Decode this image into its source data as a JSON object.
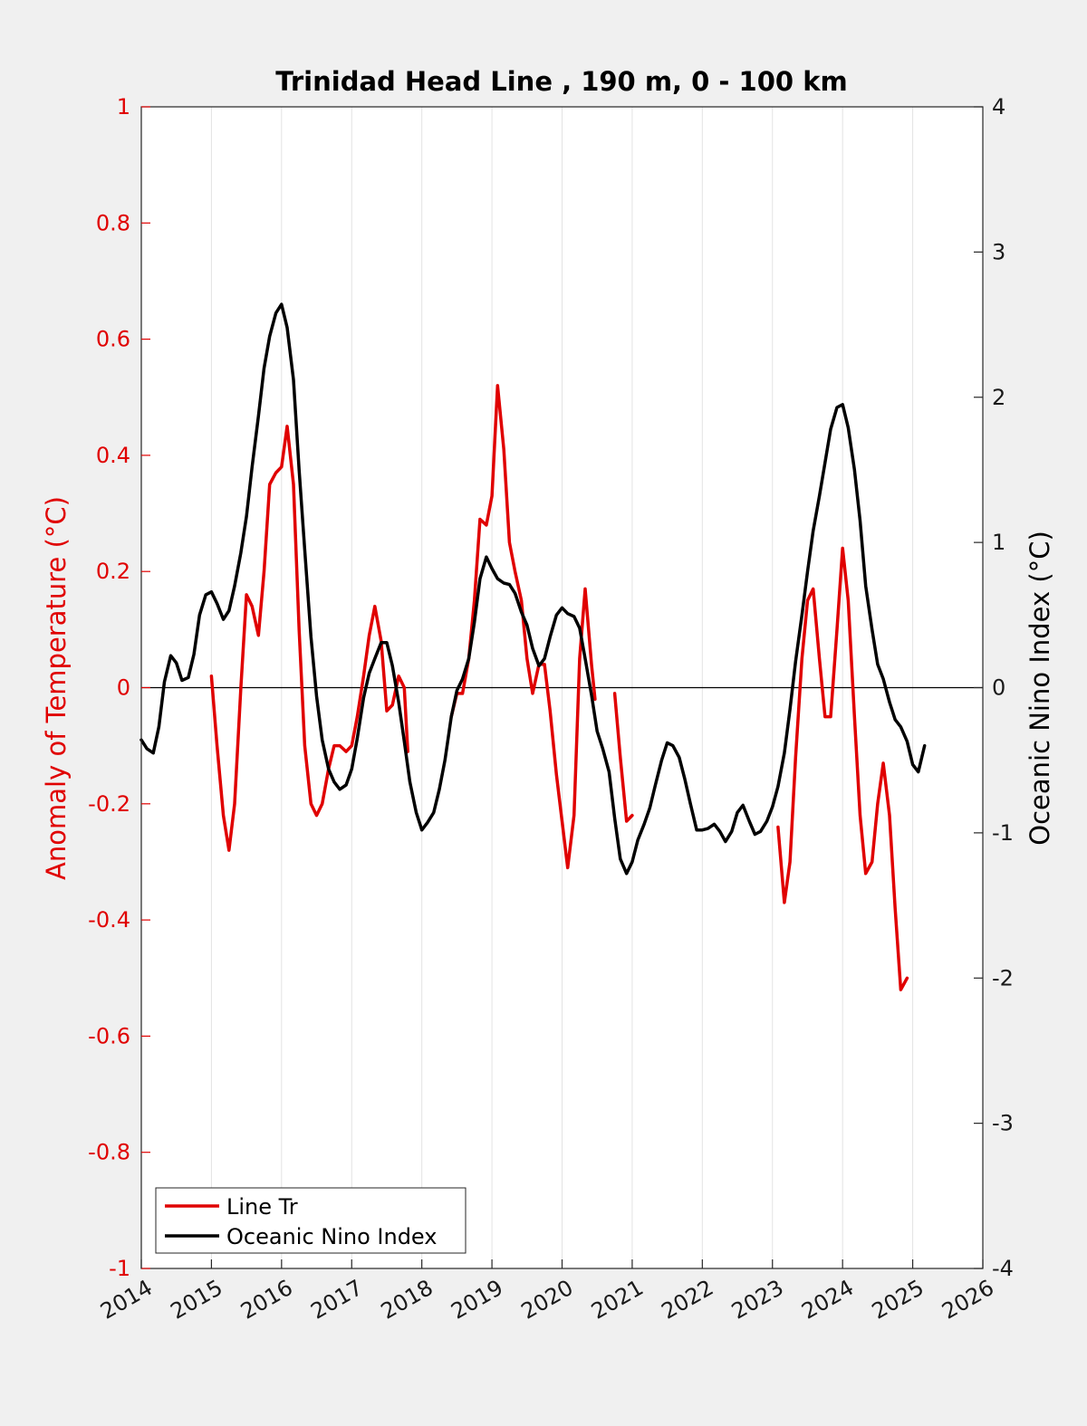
{
  "chart_data": {
    "type": "line",
    "title": "Trinidad Head Line , 190 m, 0 - 100 km",
    "xlim": [
      2014,
      2026
    ],
    "x_ticks": [
      "2014",
      "2015",
      "2016",
      "2017",
      "2018",
      "2019",
      "2020",
      "2021",
      "2022",
      "2023",
      "2024",
      "2025",
      "2026"
    ],
    "x_grid": true,
    "y_left": {
      "label": "Anomaly of Temperature (°C)",
      "range": [
        -1,
        1
      ],
      "ticks": [
        "-1",
        "-0.8",
        "-0.6",
        "-0.4",
        "-0.2",
        "0",
        "0.2",
        "0.4",
        "0.6",
        "0.8",
        "1"
      ],
      "color": "#e00000"
    },
    "y_right": {
      "label": "Oceanic Nino Index (°C)",
      "range": [
        -4,
        4
      ],
      "ticks": [
        "-4",
        "-3",
        "-2",
        "-1",
        "0",
        "1",
        "2",
        "3",
        "4"
      ],
      "color": "#000000"
    },
    "zero_line": true,
    "legend": {
      "position": "bottom-left"
    },
    "series": [
      {
        "name": "Line Tr",
        "axis": "left",
        "color": "#e00000",
        "segments": [
          [
            [
              2015.0,
              0.02
            ],
            [
              2015.08,
              -0.1
            ],
            [
              2015.17,
              -0.22
            ],
            [
              2015.25,
              -0.28
            ],
            [
              2015.33,
              -0.2
            ],
            [
              2015.42,
              0.0
            ],
            [
              2015.5,
              0.16
            ],
            [
              2015.58,
              0.14
            ],
            [
              2015.67,
              0.09
            ],
            [
              2015.75,
              0.2
            ],
            [
              2015.83,
              0.35
            ],
            [
              2015.92,
              0.37
            ],
            [
              2016.0,
              0.38
            ],
            [
              2016.08,
              0.45
            ],
            [
              2016.17,
              0.35
            ],
            [
              2016.25,
              0.1
            ],
            [
              2016.33,
              -0.1
            ],
            [
              2016.42,
              -0.2
            ],
            [
              2016.5,
              -0.22
            ],
            [
              2016.58,
              -0.2
            ],
            [
              2016.67,
              -0.14
            ],
            [
              2016.75,
              -0.1
            ],
            [
              2016.83,
              -0.1
            ],
            [
              2016.92,
              -0.11
            ],
            [
              2017.0,
              -0.1
            ],
            [
              2017.08,
              -0.05
            ],
            [
              2017.17,
              0.02
            ],
            [
              2017.25,
              0.09
            ],
            [
              2017.33,
              0.14
            ],
            [
              2017.42,
              0.08
            ],
            [
              2017.5,
              -0.04
            ],
            [
              2017.58,
              -0.03
            ],
            [
              2017.67,
              0.02
            ],
            [
              2017.75,
              0.0
            ],
            [
              2017.8,
              -0.11
            ]
          ],
          [
            [
              2018.42,
              -0.05
            ],
            [
              2018.5,
              -0.01
            ],
            [
              2018.58,
              -0.01
            ],
            [
              2018.67,
              0.05
            ],
            [
              2018.75,
              0.15
            ],
            [
              2018.83,
              0.29
            ],
            [
              2018.92,
              0.28
            ],
            [
              2019.0,
              0.33
            ],
            [
              2019.08,
              0.52
            ],
            [
              2019.17,
              0.41
            ],
            [
              2019.25,
              0.25
            ],
            [
              2019.33,
              0.2
            ],
            [
              2019.42,
              0.15
            ],
            [
              2019.5,
              0.05
            ],
            [
              2019.58,
              -0.01
            ],
            [
              2019.67,
              0.04
            ],
            [
              2019.75,
              0.04
            ],
            [
              2019.83,
              -0.04
            ],
            [
              2019.92,
              -0.15
            ],
            [
              2020.0,
              -0.23
            ],
            [
              2020.08,
              -0.31
            ],
            [
              2020.17,
              -0.22
            ],
            [
              2020.25,
              0.05
            ],
            [
              2020.33,
              0.17
            ],
            [
              2020.42,
              0.04
            ],
            [
              2020.47,
              -0.02
            ]
          ],
          [
            [
              2020.75,
              -0.01
            ],
            [
              2020.83,
              -0.12
            ],
            [
              2020.92,
              -0.23
            ],
            [
              2021.0,
              -0.22
            ]
          ],
          [
            [
              2023.08,
              -0.24
            ],
            [
              2023.17,
              -0.37
            ],
            [
              2023.25,
              -0.3
            ],
            [
              2023.33,
              -0.12
            ],
            [
              2023.42,
              0.05
            ],
            [
              2023.5,
              0.15
            ],
            [
              2023.58,
              0.17
            ],
            [
              2023.67,
              0.05
            ],
            [
              2023.75,
              -0.05
            ],
            [
              2023.83,
              -0.05
            ],
            [
              2023.92,
              0.1
            ],
            [
              2024.0,
              0.24
            ],
            [
              2024.08,
              0.15
            ],
            [
              2024.17,
              -0.05
            ],
            [
              2024.25,
              -0.22
            ],
            [
              2024.33,
              -0.32
            ],
            [
              2024.42,
              -0.3
            ],
            [
              2024.5,
              -0.2
            ],
            [
              2024.58,
              -0.13
            ],
            [
              2024.67,
              -0.22
            ],
            [
              2024.75,
              -0.38
            ],
            [
              2024.83,
              -0.52
            ],
            [
              2024.92,
              -0.5
            ]
          ]
        ]
      },
      {
        "name": "Oceanic Nino Index",
        "axis": "right",
        "color": "#000000",
        "segments": [
          [
            [
              2014.0,
              -0.36
            ],
            [
              2014.08,
              -0.42
            ],
            [
              2014.17,
              -0.45
            ],
            [
              2014.25,
              -0.27
            ],
            [
              2014.33,
              0.04
            ],
            [
              2014.42,
              0.22
            ],
            [
              2014.5,
              0.17
            ],
            [
              2014.58,
              0.05
            ],
            [
              2014.67,
              0.07
            ],
            [
              2014.75,
              0.23
            ],
            [
              2014.83,
              0.5
            ],
            [
              2014.92,
              0.64
            ],
            [
              2015.0,
              0.66
            ],
            [
              2015.08,
              0.58
            ],
            [
              2015.17,
              0.47
            ],
            [
              2015.25,
              0.53
            ],
            [
              2015.33,
              0.7
            ],
            [
              2015.42,
              0.93
            ],
            [
              2015.5,
              1.18
            ],
            [
              2015.58,
              1.52
            ],
            [
              2015.67,
              1.87
            ],
            [
              2015.75,
              2.2
            ],
            [
              2015.83,
              2.42
            ],
            [
              2015.92,
              2.58
            ],
            [
              2016.0,
              2.64
            ],
            [
              2016.08,
              2.48
            ],
            [
              2016.17,
              2.12
            ],
            [
              2016.25,
              1.5
            ],
            [
              2016.33,
              0.95
            ],
            [
              2016.42,
              0.35
            ],
            [
              2016.5,
              -0.06
            ],
            [
              2016.58,
              -0.36
            ],
            [
              2016.67,
              -0.56
            ],
            [
              2016.75,
              -0.65
            ],
            [
              2016.83,
              -0.7
            ],
            [
              2016.92,
              -0.67
            ],
            [
              2017.0,
              -0.56
            ],
            [
              2017.08,
              -0.35
            ],
            [
              2017.17,
              -0.07
            ],
            [
              2017.25,
              0.1
            ],
            [
              2017.33,
              0.2
            ],
            [
              2017.42,
              0.31
            ],
            [
              2017.5,
              0.31
            ],
            [
              2017.58,
              0.15
            ],
            [
              2017.67,
              -0.1
            ],
            [
              2017.75,
              -0.37
            ],
            [
              2017.83,
              -0.65
            ],
            [
              2017.92,
              -0.86
            ],
            [
              2018.0,
              -0.98
            ],
            [
              2018.08,
              -0.93
            ],
            [
              2018.17,
              -0.86
            ],
            [
              2018.25,
              -0.7
            ],
            [
              2018.33,
              -0.5
            ],
            [
              2018.42,
              -0.2
            ],
            [
              2018.5,
              -0.02
            ],
            [
              2018.58,
              0.06
            ],
            [
              2018.67,
              0.2
            ],
            [
              2018.75,
              0.45
            ],
            [
              2018.83,
              0.75
            ],
            [
              2018.92,
              0.9
            ],
            [
              2019.0,
              0.82
            ],
            [
              2019.08,
              0.75
            ],
            [
              2019.17,
              0.72
            ],
            [
              2019.25,
              0.71
            ],
            [
              2019.33,
              0.65
            ],
            [
              2019.42,
              0.52
            ],
            [
              2019.5,
              0.43
            ],
            [
              2019.58,
              0.27
            ],
            [
              2019.67,
              0.15
            ],
            [
              2019.75,
              0.2
            ],
            [
              2019.83,
              0.35
            ],
            [
              2019.92,
              0.5
            ],
            [
              2020.0,
              0.55
            ],
            [
              2020.08,
              0.51
            ],
            [
              2020.17,
              0.49
            ],
            [
              2020.25,
              0.41
            ],
            [
              2020.33,
              0.2
            ],
            [
              2020.42,
              -0.05
            ],
            [
              2020.5,
              -0.3
            ],
            [
              2020.58,
              -0.42
            ],
            [
              2020.67,
              -0.58
            ],
            [
              2020.75,
              -0.9
            ],
            [
              2020.83,
              -1.18
            ],
            [
              2020.92,
              -1.28
            ],
            [
              2021.0,
              -1.2
            ],
            [
              2021.08,
              -1.05
            ],
            [
              2021.17,
              -0.94
            ],
            [
              2021.25,
              -0.83
            ],
            [
              2021.33,
              -0.67
            ],
            [
              2021.42,
              -0.5
            ],
            [
              2021.5,
              -0.38
            ],
            [
              2021.58,
              -0.4
            ],
            [
              2021.67,
              -0.48
            ],
            [
              2021.75,
              -0.63
            ],
            [
              2021.83,
              -0.8
            ],
            [
              2021.92,
              -0.98
            ],
            [
              2022.0,
              -0.98
            ],
            [
              2022.08,
              -0.97
            ],
            [
              2022.17,
              -0.94
            ],
            [
              2022.25,
              -0.99
            ],
            [
              2022.33,
              -1.06
            ],
            [
              2022.42,
              -0.99
            ],
            [
              2022.5,
              -0.86
            ],
            [
              2022.58,
              -0.81
            ],
            [
              2022.67,
              -0.92
            ],
            [
              2022.75,
              -1.01
            ],
            [
              2022.83,
              -0.99
            ],
            [
              2022.92,
              -0.92
            ],
            [
              2023.0,
              -0.82
            ],
            [
              2023.08,
              -0.68
            ],
            [
              2023.17,
              -0.45
            ],
            [
              2023.25,
              -0.15
            ],
            [
              2023.33,
              0.18
            ],
            [
              2023.42,
              0.5
            ],
            [
              2023.5,
              0.8
            ],
            [
              2023.58,
              1.08
            ],
            [
              2023.67,
              1.32
            ],
            [
              2023.75,
              1.55
            ],
            [
              2023.83,
              1.78
            ],
            [
              2023.92,
              1.93
            ],
            [
              2024.0,
              1.95
            ],
            [
              2024.08,
              1.79
            ],
            [
              2024.17,
              1.5
            ],
            [
              2024.25,
              1.15
            ],
            [
              2024.33,
              0.7
            ],
            [
              2024.42,
              0.4
            ],
            [
              2024.5,
              0.16
            ],
            [
              2024.58,
              0.06
            ],
            [
              2024.67,
              -0.1
            ],
            [
              2024.75,
              -0.22
            ],
            [
              2024.83,
              -0.27
            ],
            [
              2024.92,
              -0.37
            ],
            [
              2025.0,
              -0.53
            ],
            [
              2025.08,
              -0.58
            ],
            [
              2025.17,
              -0.4
            ]
          ]
        ]
      }
    ]
  }
}
